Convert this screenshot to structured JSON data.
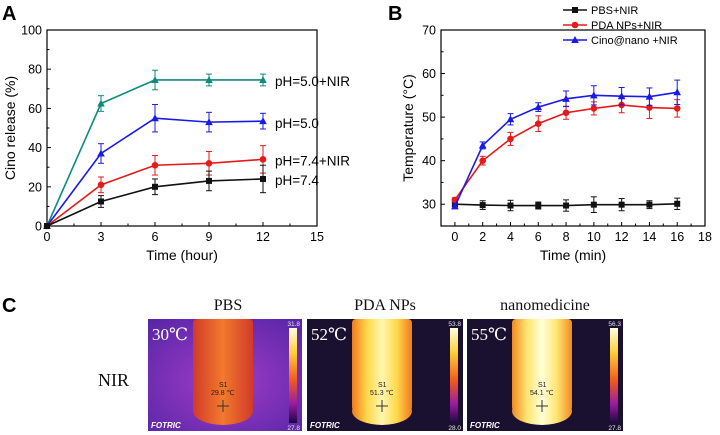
{
  "panels": {
    "a_label": "A",
    "b_label": "B",
    "c_label": "C"
  },
  "chart_data": [
    {
      "type": "line",
      "panel": "A",
      "xlabel": "Time (hour)",
      "ylabel": "Cino release (%)",
      "xlim": [
        0,
        15
      ],
      "ylim": [
        0,
        100
      ],
      "xticks": [
        0,
        3,
        6,
        9,
        12,
        15
      ],
      "yticks": [
        0,
        20,
        40,
        60,
        80,
        100
      ],
      "x": [
        0,
        3,
        6,
        9,
        12
      ],
      "series": [
        {
          "name": "pH=5.0+NIR",
          "color": "#0f8a7e",
          "marker": "triangle",
          "values": [
            0,
            62.5,
            74.5,
            74.5,
            74.5
          ],
          "errors": [
            0,
            4,
            5,
            3,
            3
          ]
        },
        {
          "name": "pH=5.0",
          "color": "#1a1ae6",
          "marker": "triangle",
          "values": [
            0,
            37,
            55,
            53,
            53.5
          ],
          "errors": [
            0,
            5,
            7,
            5,
            4
          ]
        },
        {
          "name": "pH=7.4+NIR",
          "color": "#e61a1a",
          "marker": "circle",
          "values": [
            0,
            21,
            31,
            32,
            34
          ],
          "errors": [
            0,
            4,
            5,
            6,
            7
          ]
        },
        {
          "name": "pH=7.4",
          "color": "#111111",
          "marker": "square",
          "values": [
            0,
            12.5,
            20,
            23,
            24
          ],
          "errors": [
            0,
            3,
            4,
            5,
            7
          ]
        }
      ]
    },
    {
      "type": "line",
      "panel": "B",
      "xlabel": "Time (min)",
      "ylabel": "Temperature (°C)",
      "xlim": [
        -1,
        18
      ],
      "ylim": [
        25,
        70
      ],
      "xticks": [
        0,
        2,
        4,
        6,
        8,
        10,
        12,
        14,
        16,
        18
      ],
      "yticks": [
        30,
        40,
        50,
        60,
        70
      ],
      "x": [
        0,
        2,
        4,
        6,
        8,
        10,
        12,
        14,
        16
      ],
      "legend_position": "top-right",
      "series": [
        {
          "name": "PBS+NIR",
          "color": "#111111",
          "marker": "square",
          "values": [
            30,
            29.8,
            29.7,
            29.7,
            29.7,
            29.9,
            29.9,
            29.9,
            30.1
          ],
          "errors": [
            0.5,
            1.0,
            1.2,
            0.8,
            1.3,
            1.8,
            1.4,
            0.9,
            1.3
          ]
        },
        {
          "name": "PDA NPs+NIR",
          "color": "#e61a1a",
          "marker": "circle",
          "values": [
            31,
            40,
            45,
            48.5,
            51,
            52,
            52.8,
            52.2,
            52
          ],
          "errors": [
            0.5,
            1.0,
            1.5,
            1.8,
            1.5,
            1.5,
            1.8,
            2.5,
            2.0
          ]
        },
        {
          "name": "Cino@nano +NIR",
          "color": "#1a1ae6",
          "marker": "triangle",
          "values": [
            29.5,
            43.5,
            49.5,
            52.3,
            54.2,
            55,
            54.8,
            54.7,
            55.7
          ],
          "errors": [
            0.5,
            0.8,
            1.3,
            1.0,
            1.8,
            2.2,
            2.0,
            2.0,
            2.8
          ]
        }
      ]
    }
  ],
  "thermal": {
    "row_label": "NIR",
    "brand": "FOTRIC",
    "images": [
      {
        "title": "PBS",
        "temp": "30℃",
        "scale_max": "31.8",
        "scale_min": "27.8",
        "spot": "S1",
        "spot_value": "29.8 ℃",
        "bg": "#6a2fb0",
        "tube": "#e0501f"
      },
      {
        "title": "PDA NPs",
        "temp": "52℃",
        "scale_max": "53.8",
        "scale_min": "28.0",
        "spot": "S1",
        "spot_value": "51.3 ℃",
        "bg": "#1a1030",
        "tube": "#ffe066"
      },
      {
        "title": "nanomedicine",
        "temp": "55℃",
        "scale_max": "56.3",
        "scale_min": "27.8",
        "spot": "S1",
        "spot_value": "54.1 ℃",
        "bg": "#1a1030",
        "tube": "#fff2a0"
      }
    ]
  }
}
